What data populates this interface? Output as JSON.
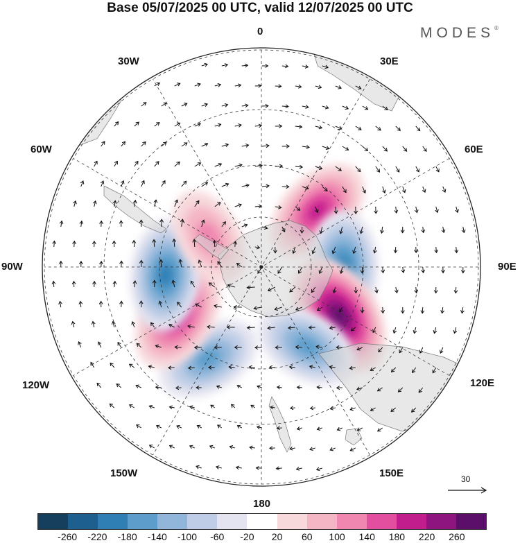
{
  "title": "Base 05/07/2025 00 UTC, valid 12/07/2025 00 UTC",
  "brand": "MODES",
  "brand_mark": "®",
  "longitude_labels": {
    "lon_0": "0",
    "lon_30e": "30E",
    "lon_60e": "60E",
    "lon_90e": "90E",
    "lon_120e": "120E",
    "lon_150e": "150E",
    "lon_180": "180",
    "lon_150w": "150W",
    "lon_120w": "120W",
    "lon_90w": "90W",
    "lon_60w": "60W",
    "lon_30w": "30W"
  },
  "reference_vector": "30",
  "colorbar": {
    "labels": [
      "-260",
      "-220",
      "-180",
      "-140",
      "-100",
      "-60",
      "-20",
      "20",
      "60",
      "100",
      "140",
      "180",
      "220",
      "260"
    ],
    "colors": [
      "#163f5e",
      "#1d5f8e",
      "#2f7fb5",
      "#5c9dcb",
      "#91b6d9",
      "#bfcde6",
      "#e4e4f0",
      "#ffffff",
      "#f7d9dc",
      "#f4b6c4",
      "#ef87b0",
      "#e24f9f",
      "#c21d8d",
      "#8e1480",
      "#5b0f6a"
    ]
  },
  "anomaly_centers": [
    {
      "lon": 45,
      "lat": -57,
      "value": 180
    },
    {
      "lon": 90,
      "lat": -56,
      "value": -180
    },
    {
      "lon": 122,
      "lat": -52,
      "value": 260
    },
    {
      "lon": 150,
      "lat": -52,
      "value": -140
    },
    {
      "lon": -150,
      "lat": -46,
      "value": -140
    },
    {
      "lon": -120,
      "lat": -50,
      "value": 200
    },
    {
      "lon": -95,
      "lat": -50,
      "value": -180
    },
    {
      "lon": -60,
      "lat": -65,
      "value": 100
    }
  ]
}
